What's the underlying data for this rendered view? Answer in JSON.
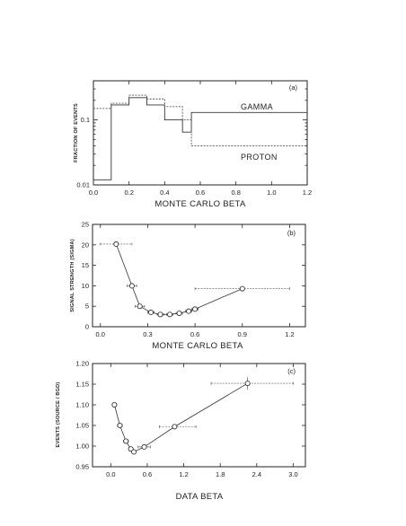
{
  "chart_data": [
    {
      "type": "line",
      "panel_label": "(a)",
      "xlabel": "MONTE CARLO BETA",
      "ylabel": "FRACTION OF EVENTS",
      "xlim": [
        0.0,
        1.2
      ],
      "ylim": [
        0.01,
        0.4
      ],
      "yscale": "log",
      "xticks": [
        "0.0",
        "0.2",
        "0.4",
        "0.6",
        "0.8",
        "1.0",
        "1.2"
      ],
      "yticks": [
        "0.01",
        "0.1"
      ],
      "ytick_values": [
        0.01,
        0.1
      ],
      "annotations": [
        "GAMMA",
        "PROTON"
      ],
      "series": [
        {
          "style": "solid-step",
          "edges": [
            0.0,
            0.1,
            0.2,
            0.3,
            0.4,
            0.5,
            0.55,
            1.2
          ],
          "values": [
            0.012,
            0.17,
            0.22,
            0.17,
            0.1,
            0.065,
            0.13
          ]
        },
        {
          "style": "dashed-step",
          "edges": [
            0.0,
            0.1,
            0.2,
            0.3,
            0.4,
            0.5,
            0.55,
            1.2
          ],
          "values": [
            0.15,
            0.18,
            0.24,
            0.21,
            0.16,
            0.1,
            0.04
          ]
        }
      ]
    },
    {
      "type": "scatter",
      "panel_label": "(b)",
      "xlabel": "MONTE CARLO BETA",
      "ylabel": "SIGNAL STRENGTH (SIGMA)",
      "xlim": [
        -0.05,
        1.3
      ],
      "ylim": [
        0,
        25
      ],
      "xticks": [
        "0.0",
        "0.3",
        "0.6",
        "0.9",
        "1.2"
      ],
      "xtick_values": [
        0.0,
        0.3,
        0.6,
        0.9,
        1.2
      ],
      "yticks": [
        "0",
        "5",
        "10",
        "15",
        "20",
        "25"
      ],
      "ytick_values": [
        0,
        5,
        10,
        15,
        20,
        25
      ],
      "points": [
        {
          "x": 0.1,
          "y": 20.2,
          "xerr": [
            0.1,
            0.1
          ],
          "yerr": 0.3
        },
        {
          "x": 0.2,
          "y": 10.0,
          "xerr": [
            0.03,
            0.03
          ],
          "yerr": 0.4
        },
        {
          "x": 0.25,
          "y": 5.0,
          "xerr": [
            0.03,
            0.03
          ],
          "yerr": 0.3
        },
        {
          "x": 0.32,
          "y": 3.5,
          "xerr": [
            0.02,
            0.02
          ],
          "yerr": 0.3
        },
        {
          "x": 0.38,
          "y": 3.0,
          "xerr": [
            0.02,
            0.02
          ],
          "yerr": 0.3
        },
        {
          "x": 0.44,
          "y": 3.0,
          "xerr": [
            0.02,
            0.02
          ],
          "yerr": 0.3
        },
        {
          "x": 0.5,
          "y": 3.3,
          "xerr": [
            0.02,
            0.02
          ],
          "yerr": 0.3
        },
        {
          "x": 0.56,
          "y": 3.8,
          "xerr": [
            0.02,
            0.02
          ],
          "yerr": 0.3
        },
        {
          "x": 0.6,
          "y": 4.3,
          "xerr": [
            0.02,
            0.02
          ],
          "yerr": 0.3
        },
        {
          "x": 0.9,
          "y": 9.3,
          "xerr": [
            0.3,
            0.3
          ],
          "yerr": 0.3
        }
      ]
    },
    {
      "type": "scatter",
      "panel_label": "(c)",
      "xlabel": "DATA  BETA",
      "ylabel": "EVENTS (SOURCE / BGD)",
      "xlim": [
        -0.3,
        3.2
      ],
      "ylim": [
        0.95,
        1.2
      ],
      "xticks": [
        "0.0",
        "0.6",
        "1.2",
        "1.8",
        "2.4",
        "3.0"
      ],
      "xtick_values": [
        0.0,
        0.6,
        1.2,
        1.8,
        2.4,
        3.0
      ],
      "yticks": [
        "0.95",
        "1.00",
        "1.05",
        "1.10",
        "1.15",
        "1.20"
      ],
      "ytick_values": [
        0.95,
        1.0,
        1.05,
        1.1,
        1.15,
        1.2
      ],
      "points": [
        {
          "x": 0.06,
          "y": 1.1,
          "xerr": [
            0.03,
            0.03
          ],
          "yerr": 0.005
        },
        {
          "x": 0.15,
          "y": 1.05,
          "xerr": [
            0.04,
            0.04
          ],
          "yerr": 0.006
        },
        {
          "x": 0.25,
          "y": 1.012,
          "xerr": [
            0.04,
            0.04
          ],
          "yerr": 0.005
        },
        {
          "x": 0.33,
          "y": 0.993,
          "xerr": [
            0.03,
            0.03
          ],
          "yerr": 0.005
        },
        {
          "x": 0.38,
          "y": 0.986,
          "xerr": [
            0.03,
            0.03
          ],
          "yerr": 0.005
        },
        {
          "x": 0.55,
          "y": 0.998,
          "xerr": [
            0.1,
            0.1
          ],
          "yerr": 0.006
        },
        {
          "x": 1.05,
          "y": 1.047,
          "xerr": [
            0.25,
            0.35
          ],
          "yerr": 0.006
        },
        {
          "x": 2.25,
          "y": 1.152,
          "xerr": [
            0.6,
            0.75
          ],
          "yerr": 0.015
        }
      ]
    }
  ]
}
